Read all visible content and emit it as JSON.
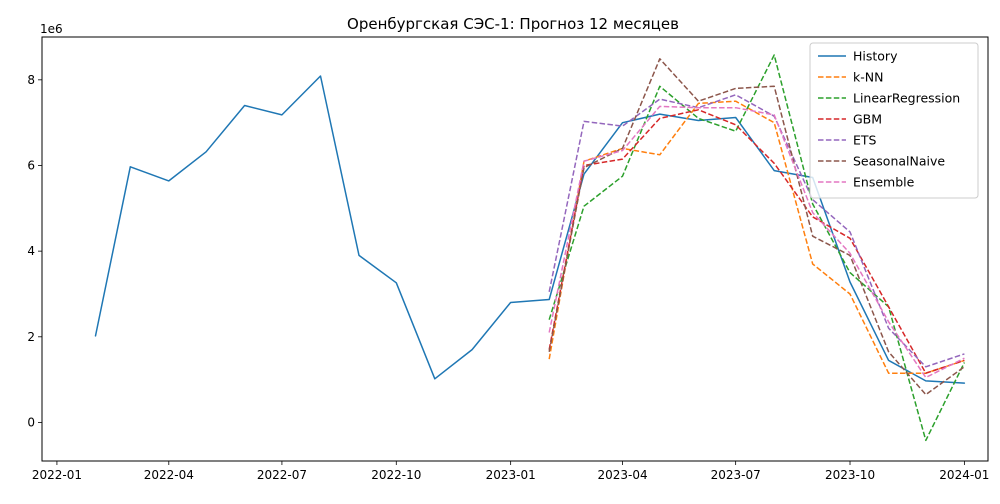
{
  "chart_data": {
    "type": "line",
    "title": "Оренбургская СЭС-1: Прогноз 12 месяцев",
    "xlabel": "",
    "ylabel": "",
    "y_offset_text": "1e6",
    "xlim": [
      "2021-12-20",
      "2024-01-20"
    ],
    "ylim": [
      -900000,
      9000000
    ],
    "y_ticks": [
      0,
      2000000,
      4000000,
      6000000,
      8000000
    ],
    "y_tick_labels": [
      "0",
      "2",
      "4",
      "6",
      "8"
    ],
    "x_ticks": [
      "2022-01-01",
      "2022-04-01",
      "2022-07-01",
      "2022-10-01",
      "2023-01-01",
      "2023-04-01",
      "2023-07-01",
      "2023-10-01",
      "2024-01-01"
    ],
    "x_tick_labels": [
      "2022-01",
      "2022-04",
      "2022-07",
      "2022-10",
      "2023-01",
      "2023-04",
      "2023-07",
      "2023-10",
      "2024-01"
    ],
    "grid": false,
    "legend_position": "top-right",
    "forecast_x": [
      "2023-02-01",
      "2023-03-01",
      "2023-04-01",
      "2023-05-01",
      "2023-06-01",
      "2023-07-01",
      "2023-08-01",
      "2023-09-01",
      "2023-10-01",
      "2023-11-01",
      "2023-12-01",
      "2024-01-01"
    ],
    "series": [
      {
        "name": "History",
        "color": "#1f77b4",
        "dashed": false,
        "x": [
          "2022-02-01",
          "2022-03-01",
          "2022-04-01",
          "2022-05-01",
          "2022-06-01",
          "2022-07-01",
          "2022-08-01",
          "2022-09-01",
          "2022-10-01",
          "2022-11-01",
          "2022-12-01",
          "2023-01-01",
          "2023-02-01",
          "2023-03-01",
          "2023-04-01",
          "2023-05-01",
          "2023-06-01",
          "2023-07-01",
          "2023-08-01",
          "2023-09-01",
          "2023-10-01",
          "2023-11-01",
          "2023-12-01",
          "2024-01-01"
        ],
        "values": [
          2020000,
          5970000,
          5640000,
          6320000,
          7400000,
          7180000,
          8090000,
          3900000,
          3260000,
          1020000,
          1700000,
          2800000,
          2870000,
          5800000,
          7000000,
          7200000,
          7050000,
          7120000,
          5880000,
          5720000,
          3280000,
          1450000,
          970000,
          920000
        ]
      },
      {
        "name": "k-NN",
        "color": "#ff7f0e",
        "dashed": true,
        "values": [
          1480000,
          6100000,
          6400000,
          6250000,
          7450000,
          7500000,
          7000000,
          3700000,
          3000000,
          1150000,
          1150000,
          1450000
        ]
      },
      {
        "name": "LinearRegression",
        "color": "#2ca02c",
        "dashed": true,
        "values": [
          2400000,
          5050000,
          5750000,
          7850000,
          7100000,
          6800000,
          8580000,
          5100000,
          3500000,
          2700000,
          -420000,
          1400000
        ]
      },
      {
        "name": "GBM",
        "color": "#d62728",
        "dashed": true,
        "values": [
          1700000,
          6000000,
          6150000,
          7100000,
          7300000,
          6950000,
          6050000,
          4800000,
          4300000,
          2700000,
          1150000,
          1450000
        ]
      },
      {
        "name": "ETS",
        "color": "#9467bd",
        "dashed": true,
        "values": [
          3050000,
          7030000,
          6920000,
          7550000,
          7350000,
          7650000,
          7150000,
          5200000,
          4450000,
          2200000,
          1300000,
          1600000
        ]
      },
      {
        "name": "SeasonalNaive",
        "color": "#8c564b",
        "dashed": true,
        "values": [
          1650000,
          5950000,
          6400000,
          8490000,
          7500000,
          7800000,
          7850000,
          4350000,
          3900000,
          1650000,
          650000,
          1300000
        ]
      },
      {
        "name": "Ensemble",
        "color": "#e377c2",
        "dashed": true,
        "values": [
          2100000,
          6100000,
          6350000,
          7380000,
          7350000,
          7350000,
          7180000,
          4900000,
          3950000,
          2350000,
          1050000,
          1500000
        ]
      }
    ]
  }
}
